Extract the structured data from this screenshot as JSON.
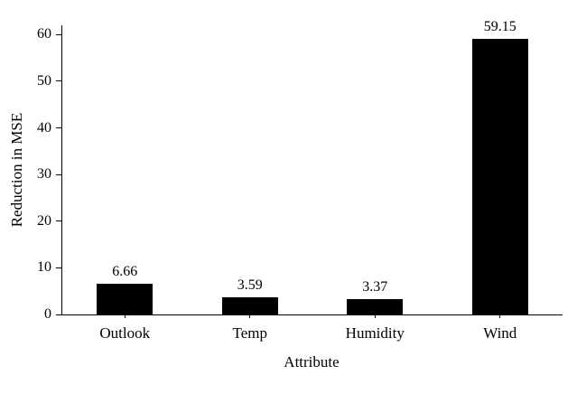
{
  "chart_data": {
    "type": "bar",
    "categories": [
      "Outlook",
      "Temp",
      "Humidity",
      "Wind"
    ],
    "values": [
      6.66,
      3.59,
      3.37,
      59.15
    ],
    "value_labels": [
      "6.66",
      "3.59",
      "3.37",
      "59.15"
    ],
    "title": "",
    "xlabel": "Attribute",
    "ylabel": "Reduction in MSE",
    "ylim": [
      0,
      62
    ],
    "yticks": [
      0,
      10,
      20,
      30,
      40,
      50,
      60
    ],
    "bar_color": "#000000",
    "grid": false,
    "legend": null,
    "background_color": "#ffffff"
  }
}
